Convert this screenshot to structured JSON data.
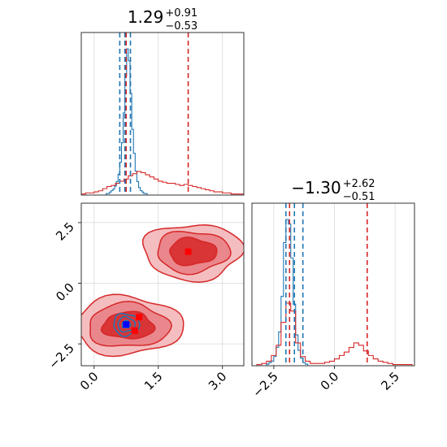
{
  "chart_data": [
    {
      "type": "histogram",
      "panel": "top-left",
      "parameter_index": 0,
      "title": {
        "median": "1.29",
        "plus": "+0.91",
        "minus": "−0.53"
      },
      "xlim": [
        -0.3,
        3.5
      ],
      "x_grid": [
        0.0,
        1.5,
        3.0
      ],
      "series": [
        {
          "name": "",
          "color": "#1f77b4",
          "quantile_lines": [
            0.6,
            0.72,
            0.85
          ],
          "bin_start": 0.2,
          "bin_width": 0.04,
          "counts": [
            0,
            0,
            1,
            1,
            2,
            3,
            4,
            6,
            9,
            14,
            22,
            35,
            55,
            80,
            98,
            90,
            68,
            44,
            28,
            16,
            9,
            5,
            3,
            2,
            1,
            1,
            0,
            0
          ]
        },
        {
          "name": "",
          "color": "#d62728",
          "quantile_lines": [
            0.75,
            2.2
          ],
          "bin_start": -0.3,
          "bin_width": 0.1,
          "counts": [
            1,
            2,
            2,
            3,
            4,
            6,
            8,
            9,
            11,
            13,
            15,
            18,
            20,
            22,
            21,
            19,
            17,
            15,
            13,
            12,
            11,
            11,
            10,
            9,
            10,
            9,
            8,
            7,
            6,
            5,
            4,
            3,
            3,
            2,
            2,
            1,
            1,
            1
          ]
        }
      ]
    },
    {
      "type": "contour",
      "panel": "bottom-left",
      "xlim": [
        -0.3,
        3.5
      ],
      "ylim": [
        -3.4,
        3.3
      ],
      "x_ticks": [
        "0.0",
        "1.5",
        "3.0"
      ],
      "x_tick_values": [
        0.0,
        1.5,
        3.0
      ],
      "y_ticks": [
        "−2.5",
        "0.0",
        "2.5"
      ],
      "y_tick_values": [
        -2.5,
        0.0,
        2.5
      ],
      "series": [
        {
          "name": "",
          "color": "#d62728",
          "modes": [
            {
              "cx": 2.3,
              "cy": 1.3,
              "rx": [
                1.15,
                0.85,
                0.55
              ],
              "ry": [
                1.15,
                0.85,
                0.55
              ]
            },
            {
              "cx": 0.8,
              "cy": -1.75,
              "rx": [
                1.25,
                0.95,
                0.6
              ],
              "ry": [
                1.2,
                0.9,
                0.55
              ]
            }
          ],
          "markers": [
            [
              2.2,
              1.3
            ],
            [
              1.05,
              -1.4
            ],
            [
              0.95,
              -1.95
            ]
          ]
        },
        {
          "name": "",
          "color": "#1f77b4",
          "modes": [
            {
              "cx": 0.75,
              "cy": -1.7,
              "rx": [
                0.3,
                0.2,
                0.1
              ],
              "ry": [
                0.45,
                0.3,
                0.15
              ]
            }
          ],
          "markers": [
            [
              0.75,
              -1.7
            ]
          ]
        }
      ]
    },
    {
      "type": "histogram",
      "panel": "bottom-right",
      "parameter_index": 1,
      "title": {
        "median": "−1.30",
        "plus": "+2.62",
        "minus": "−0.51"
      },
      "xlim": [
        -3.4,
        3.3
      ],
      "x_ticks": [
        "−2.5",
        "0.0",
        "2.5"
      ],
      "x_tick_values": [
        -2.5,
        0.0,
        2.5
      ],
      "series": [
        {
          "name": "",
          "color": "#1f77b4",
          "quantile_lines": [
            -2.0,
            -1.65,
            -1.3
          ],
          "bin_start": -3.0,
          "bin_width": 0.1,
          "counts": [
            0,
            0,
            1,
            2,
            3,
            6,
            12,
            22,
            45,
            80,
            95,
            92,
            70,
            40,
            20,
            10,
            5,
            2,
            1,
            0,
            0
          ]
        },
        {
          "name": "",
          "color": "#d62728",
          "quantile_lines": [
            -1.85,
            1.35
          ],
          "bin_start": -3.2,
          "bin_width": 0.2,
          "counts": [
            1,
            2,
            4,
            9,
            18,
            38,
            55,
            48,
            20,
            8,
            4,
            2,
            2,
            2,
            3,
            4,
            6,
            9,
            12,
            16,
            20,
            18,
            13,
            9,
            6,
            4,
            3,
            2,
            1,
            1,
            1,
            1,
            0
          ]
        }
      ]
    }
  ]
}
